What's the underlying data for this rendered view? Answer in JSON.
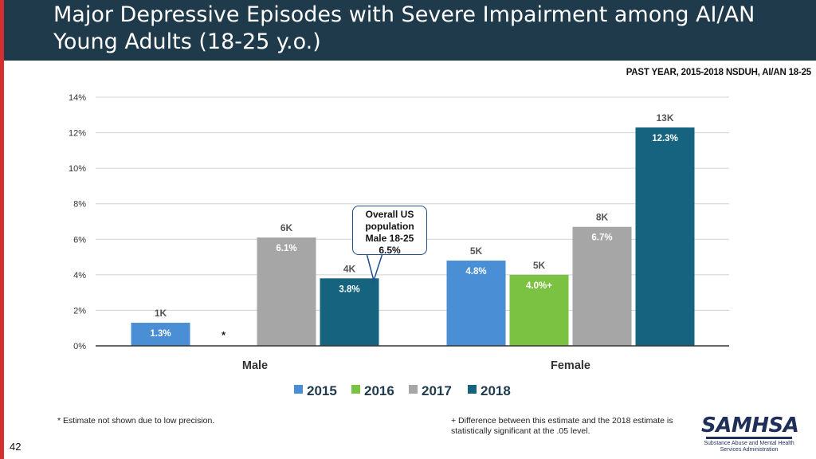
{
  "header": {
    "title": "Major Depressive Episodes with Severe Impairment among AI/AN Young Adults (18-25 y.o.)",
    "subtitle": "PAST YEAR, 2015-2018 NSDUH, AI/AN 18-25"
  },
  "chart_data": {
    "type": "bar",
    "title": "Major Depressive Episodes with Severe Impairment among AI/AN Young Adults (18-25 y.o.)",
    "xlabel": "",
    "ylabel": "",
    "ylim": [
      0,
      14
    ],
    "y_ticks": [
      "0%",
      "2%",
      "4%",
      "6%",
      "8%",
      "10%",
      "12%",
      "14%"
    ],
    "categories": [
      "Male",
      "Female"
    ],
    "grid": true,
    "legend_position": "bottom",
    "series": [
      {
        "name": "2015",
        "color": "#4a8fd6",
        "values": [
          1.3,
          4.8
        ],
        "labels": [
          "1.3%",
          "4.8%"
        ],
        "counts": [
          "1K",
          "5K"
        ]
      },
      {
        "name": "2016",
        "color": "#7cc242",
        "values": [
          null,
          4.0
        ],
        "labels": [
          "*",
          "4.0%+"
        ],
        "counts": [
          "",
          "5K"
        ]
      },
      {
        "name": "2017",
        "color": "#a6a6a6",
        "values": [
          6.1,
          6.7
        ],
        "labels": [
          "6.1%",
          "6.7%"
        ],
        "counts": [
          "6K",
          "8K"
        ]
      },
      {
        "name": "2018",
        "color": "#16637f",
        "values": [
          3.8,
          12.3
        ],
        "labels": [
          "3.8%",
          "12.3%"
        ],
        "counts": [
          "4K",
          "13K"
        ]
      }
    ]
  },
  "callout": {
    "line1": "Overall US population",
    "line2": "Male 18-25",
    "line3": "6.5%"
  },
  "footnotes": {
    "left": "* Estimate not shown due to low precision.",
    "right": "+ Difference between this estimate and the 2018 estimate is statistically significant at the .05 level."
  },
  "page_number": "42",
  "logo": {
    "word": "SAMHSA",
    "sub": "Substance Abuse and Mental Health Services Administration"
  }
}
